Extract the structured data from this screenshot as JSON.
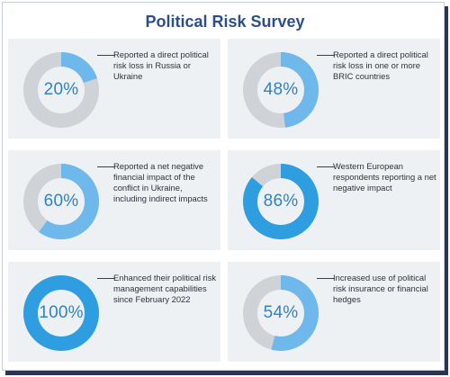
{
  "title": "Political Risk Survey",
  "colors": {
    "title": "#2d4f86",
    "progress_light": "#6fb8ec",
    "progress_dark": "#2f9ee0",
    "track": "#cfd2d6",
    "card_bg": "#eef1f3",
    "percent_text": "#2f82c4"
  },
  "chart_data": [
    {
      "type": "pie",
      "value": 20,
      "label": "20%",
      "text": "Reported a direct political risk loss in Russia or Ukraine"
    },
    {
      "type": "pie",
      "value": 48,
      "label": "48%",
      "text": "Reported a direct political risk loss in one or more BRIC countries"
    },
    {
      "type": "pie",
      "value": 60,
      "label": "60%",
      "text": "Reported a net negative financial impact of the conflict in Ukraine, including indirect impacts"
    },
    {
      "type": "pie",
      "value": 86,
      "label": "86%",
      "text": "Western European respondents reporting a net negative impact"
    },
    {
      "type": "pie",
      "value": 100,
      "label": "100%",
      "text": "Enhanced their political risk management capabilities since February 2022"
    },
    {
      "type": "pie",
      "value": 54,
      "label": "54%",
      "text": "Increased use of political risk insurance or financial hedges"
    }
  ]
}
